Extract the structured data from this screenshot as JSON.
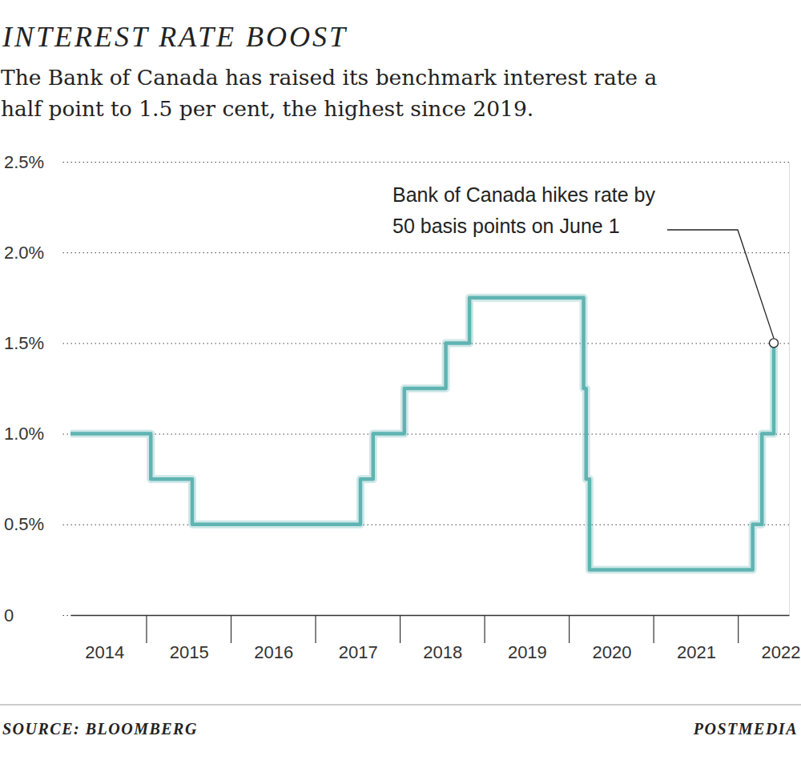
{
  "chart_data": {
    "type": "line",
    "title": "INTEREST RATE BOOST",
    "subtitle": [
      "The Bank of Canada has raised its benchmark interest rate a",
      "half point to 1.5 per cent, the highest since 2019."
    ],
    "x": [
      2014.1,
      2015.05,
      2015.54,
      2017.53,
      2017.68,
      2018.05,
      2018.54,
      2018.82,
      2020.17,
      2020.2,
      2020.24,
      2022.17,
      2022.28,
      2022.42
    ],
    "values": [
      1.0,
      0.75,
      0.5,
      0.75,
      1.0,
      1.25,
      1.5,
      1.75,
      1.25,
      0.75,
      0.25,
      0.5,
      1.0,
      1.5
    ],
    "color": "#5fb4b2",
    "line_style": "step",
    "xlim": [
      2014.1,
      2022.6
    ],
    "xticks": [
      {
        "value": 2014.5,
        "label": "2014"
      },
      {
        "value": 2015.5,
        "label": "2015"
      },
      {
        "value": 2016.5,
        "label": "2016"
      },
      {
        "value": 2017.5,
        "label": "2017"
      },
      {
        "value": 2018.5,
        "label": "2018"
      },
      {
        "value": 2019.5,
        "label": "2019"
      },
      {
        "value": 2020.5,
        "label": "2020"
      },
      {
        "value": 2021.5,
        "label": "2021"
      },
      {
        "value": 2022.5,
        "label": "2022"
      }
    ],
    "ylim": [
      0,
      2.5
    ],
    "yticks": [
      0,
      {
        "value": 0.5,
        "label": "0.5%"
      },
      {
        "value": 1.0,
        "label": "1.0%"
      },
      {
        "value": 1.5,
        "label": "1.5%"
      },
      {
        "value": 2.0,
        "label": "2.0%"
      },
      {
        "value": 2.5,
        "label": "2.5%"
      }
    ],
    "grid": true,
    "annotation": {
      "text": [
        "Bank of Canada hikes rate by",
        "50 basis points on June 1"
      ],
      "x": 2022.42,
      "y": 1.5
    },
    "source": "SOURCE: BLOOMBERG",
    "credit": "POSTMEDIA"
  }
}
